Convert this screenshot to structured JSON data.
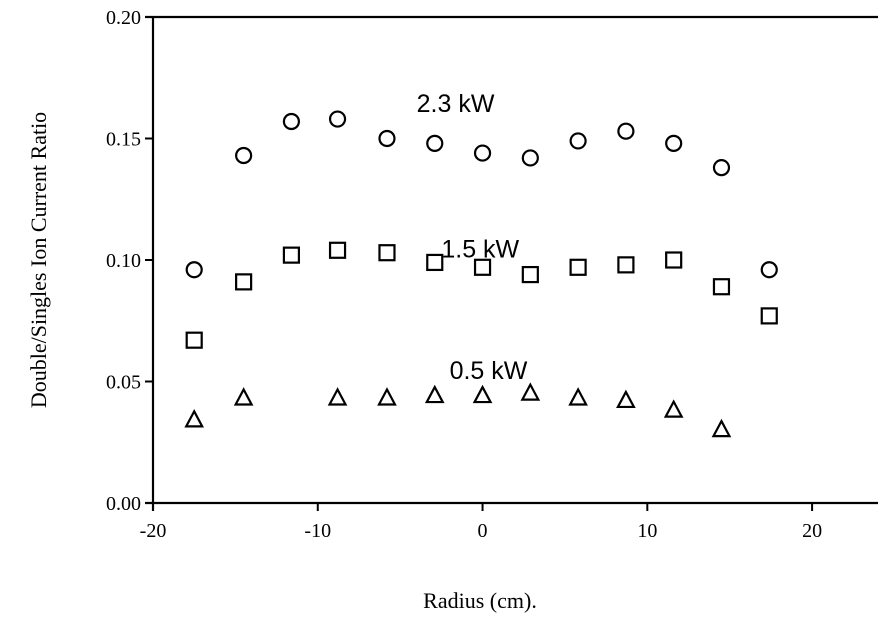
{
  "chart_data": {
    "type": "scatter",
    "xlabel": "Radius (cm).",
    "ylabel": "Double/Singles Ion Current Ratio",
    "xlim": [
      -20,
      24
    ],
    "ylim": [
      0.0,
      0.2
    ],
    "x_ticks": [
      -20,
      -10,
      0,
      10,
      20
    ],
    "x_tick_labels": [
      "-20",
      "-10",
      "0",
      "10",
      "20"
    ],
    "y_ticks": [
      0.0,
      0.05,
      0.1,
      0.15,
      0.2
    ],
    "y_tick_labels": [
      "0.00",
      "0.05",
      "0.10",
      "0.15",
      "0.20"
    ],
    "grid": false,
    "series": [
      {
        "marker": "circle",
        "points": [
          {
            "x": -17.5,
            "y": 0.096
          },
          {
            "x": -14.5,
            "y": 0.143
          },
          {
            "x": -11.6,
            "y": 0.157
          },
          {
            "x": -8.8,
            "y": 0.158
          },
          {
            "x": -5.8,
            "y": 0.15
          },
          {
            "x": -2.9,
            "y": 0.148
          },
          {
            "x": 0.0,
            "y": 0.144
          },
          {
            "x": 2.9,
            "y": 0.142
          },
          {
            "x": 5.8,
            "y": 0.149
          },
          {
            "x": 8.7,
            "y": 0.153
          },
          {
            "x": 11.6,
            "y": 0.148
          },
          {
            "x": 14.5,
            "y": 0.138
          },
          {
            "x": 17.4,
            "y": 0.096
          }
        ]
      },
      {
        "marker": "square",
        "points": [
          {
            "x": -17.5,
            "y": 0.067
          },
          {
            "x": -14.5,
            "y": 0.091
          },
          {
            "x": -11.6,
            "y": 0.102
          },
          {
            "x": -8.8,
            "y": 0.104
          },
          {
            "x": -5.8,
            "y": 0.103
          },
          {
            "x": -2.9,
            "y": 0.099
          },
          {
            "x": 0.0,
            "y": 0.097
          },
          {
            "x": 2.9,
            "y": 0.094
          },
          {
            "x": 5.8,
            "y": 0.097
          },
          {
            "x": 8.7,
            "y": 0.098
          },
          {
            "x": 11.6,
            "y": 0.1
          },
          {
            "x": 14.5,
            "y": 0.089
          },
          {
            "x": 17.4,
            "y": 0.077
          }
        ]
      },
      {
        "marker": "triangle",
        "points": [
          {
            "x": -17.5,
            "y": 0.034
          },
          {
            "x": -14.5,
            "y": 0.043
          },
          {
            "x": -8.8,
            "y": 0.043
          },
          {
            "x": -5.8,
            "y": 0.043
          },
          {
            "x": -2.9,
            "y": 0.044
          },
          {
            "x": 0.0,
            "y": 0.044
          },
          {
            "x": 2.9,
            "y": 0.045
          },
          {
            "x": 5.8,
            "y": 0.043
          },
          {
            "x": 8.7,
            "y": 0.042
          },
          {
            "x": 11.6,
            "y": 0.038
          },
          {
            "x": 14.5,
            "y": 0.03
          }
        ]
      }
    ],
    "annotations": [
      {
        "text": "2.3 kW",
        "x": -4.0,
        "y": 0.161
      },
      {
        "text": "1.5 kW",
        "x": -2.5,
        "y": 0.101
      },
      {
        "text": "0.5 kW",
        "x": -2.0,
        "y": 0.051
      }
    ]
  }
}
